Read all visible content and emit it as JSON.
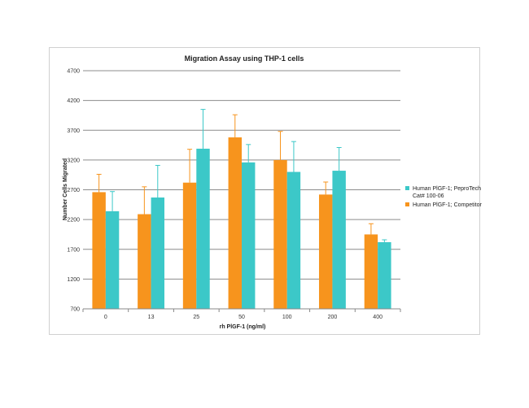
{
  "chart_data": {
    "type": "bar",
    "title": "Migration Assay using THP-1 cells",
    "xlabel": "rh PlGF-1 (ng/ml)",
    "ylabel": "Number Cells Migrated",
    "categories": [
      "0",
      "13",
      "25",
      "50",
      "100",
      "200",
      "400"
    ],
    "ylim": [
      700,
      4700
    ],
    "yticks": [
      700,
      1200,
      1700,
      2200,
      2700,
      3200,
      3700,
      4200,
      4700
    ],
    "grid": true,
    "legend_position": "right",
    "series": [
      {
        "name": "Human PlGF-1; Competitor",
        "color": "#f7941d",
        "values": [
          2660,
          2290,
          2820,
          3580,
          3200,
          2620,
          1950
        ],
        "error": [
          300,
          460,
          560,
          380,
          480,
          210,
          180
        ]
      },
      {
        "name": "Human PlGF-1; PeproTech Cat# 100-06",
        "color": "#3cc8c8",
        "values": [
          2340,
          2570,
          3390,
          3160,
          3000,
          3020,
          1820
        ],
        "error": [
          330,
          540,
          660,
          300,
          510,
          390,
          40
        ]
      }
    ],
    "legend": [
      {
        "label_line1": "Human PlGF-1; PeproTech",
        "label_line2": "Cat# 100-06",
        "series": 1
      },
      {
        "label_line1": "Human PlGF-1; Competitor",
        "label_line2": "",
        "series": 0
      }
    ]
  }
}
